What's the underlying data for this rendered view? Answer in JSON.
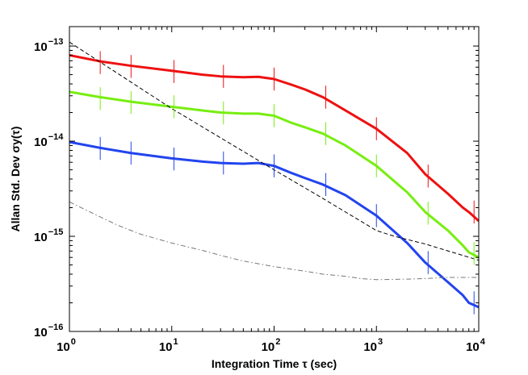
{
  "chart_data": {
    "type": "line",
    "xscale": "log",
    "yscale": "log",
    "xlim": [
      1,
      10000
    ],
    "ylim": [
      1e-16,
      1.6e-13
    ],
    "xlabel": "Integration Time τ (sec)",
    "ylabel": "Allan Std. Dev σy(τ)",
    "x_tick_labels": [
      {
        "value": 1,
        "base": "10",
        "exp": "0"
      },
      {
        "value": 10,
        "base": "10",
        "exp": "1"
      },
      {
        "value": 100,
        "base": "10",
        "exp": "2"
      },
      {
        "value": 1000,
        "base": "10",
        "exp": "3"
      },
      {
        "value": 10000,
        "base": "10",
        "exp": "4"
      }
    ],
    "y_tick_labels": [
      {
        "value": 1e-16,
        "base": "10",
        "exp": "−16"
      },
      {
        "value": 1e-15,
        "base": "10",
        "exp": "−15"
      },
      {
        "value": 1e-14,
        "base": "10",
        "exp": "−14"
      },
      {
        "value": 1e-13,
        "base": "10",
        "exp": "−13"
      }
    ],
    "series": [
      {
        "name": "red",
        "color": "#ee1111",
        "style": "solid",
        "x": [
          1,
          2,
          4,
          10,
          20,
          30,
          50,
          70,
          100,
          150,
          200,
          300,
          500,
          1000,
          2000,
          3000,
          5000,
          7000,
          8000,
          10000
        ],
        "y": [
          8e-14,
          6.9e-14,
          6.2e-14,
          5.5e-14,
          5e-14,
          4.8e-14,
          4.7e-14,
          4.75e-14,
          4.5e-14,
          3.9e-14,
          3.5e-14,
          2.9e-14,
          2.1e-14,
          1.35e-14,
          7.5e-15,
          4.5e-15,
          2.8e-15,
          2e-15,
          1.8e-15,
          1.45e-15
        ]
      },
      {
        "name": "green",
        "color": "#77ee11",
        "style": "solid",
        "x": [
          1,
          2,
          4,
          10,
          20,
          30,
          50,
          70,
          100,
          150,
          200,
          300,
          500,
          1000,
          2000,
          3000,
          5000,
          7000,
          8000,
          10000
        ],
        "y": [
          3.3e-14,
          2.9e-14,
          2.6e-14,
          2.3e-14,
          2.1e-14,
          2e-14,
          1.95e-14,
          1.95e-14,
          1.85e-14,
          1.55e-14,
          1.4e-14,
          1.2e-14,
          9e-15,
          5.5e-15,
          2.9e-15,
          1.8e-15,
          1.15e-15,
          8e-16,
          6.8e-16,
          6e-16
        ]
      },
      {
        "name": "blue",
        "color": "#2244ee",
        "style": "solid",
        "x": [
          1,
          2,
          4,
          10,
          20,
          30,
          50,
          70,
          100,
          150,
          200,
          300,
          500,
          1000,
          2000,
          3000,
          5000,
          7000,
          8000,
          10000
        ],
        "y": [
          9.8e-15,
          8.5e-15,
          7.5e-15,
          6.6e-15,
          6.1e-15,
          5.9e-15,
          5.8e-15,
          5.9e-15,
          5.5e-15,
          4.6e-15,
          4.1e-15,
          3.5e-15,
          2.7e-15,
          1.65e-15,
          8.5e-16,
          5.3e-16,
          3.3e-16,
          2.4e-16,
          2e-16,
          1.8e-16
        ]
      },
      {
        "name": "black-dashed",
        "color": "#000000",
        "style": "dashed",
        "x": [
          1,
          10,
          100,
          300,
          1000,
          1500,
          3000,
          10000
        ],
        "y": [
          1.1e-13,
          2.2e-14,
          5e-15,
          2.5e-15,
          1.15e-15,
          1e-15,
          8.3e-16,
          5.6e-16
        ]
      },
      {
        "name": "gray-dashdot",
        "color": "#777777",
        "style": "dashdot",
        "x": [
          1,
          2,
          3,
          5,
          10,
          20,
          30,
          50,
          100,
          200,
          300,
          500,
          700,
          1000,
          2000,
          3000,
          5000,
          10000
        ],
        "y": [
          2.3e-15,
          1.6e-15,
          1.3e-15,
          1.05e-15,
          8.5e-16,
          7.1e-16,
          6.3e-16,
          5.5e-16,
          4.8e-16,
          4.3e-16,
          4e-16,
          3.8e-16,
          3.6e-16,
          3.5e-16,
          3.55e-16,
          3.6e-16,
          3.7e-16,
          3.7e-16
        ]
      }
    ],
    "error_bars": [
      {
        "series": "red",
        "x": [
          2,
          4,
          10.5,
          32,
          100,
          320,
          1000,
          3200,
          9000
        ],
        "y": [
          6.7e-14,
          6.1e-14,
          5.4e-14,
          4.8e-14,
          4.5e-14,
          2.9e-14,
          1.35e-14,
          4.3e-15,
          1.8e-15
        ],
        "ratio": 1.32
      },
      {
        "series": "green",
        "x": [
          2,
          4,
          10.5,
          32,
          100,
          320,
          1000,
          3200,
          9000
        ],
        "y": [
          2.8e-14,
          2.55e-14,
          2.3e-14,
          1.98e-14,
          1.85e-14,
          1.2e-14,
          5.5e-15,
          1.75e-15,
          6.6e-16
        ],
        "ratio": 1.32
      },
      {
        "series": "blue",
        "x": [
          2,
          4,
          10.5,
          32,
          100,
          320,
          1000,
          3200,
          9000
        ],
        "y": [
          8.4e-15,
          7.5e-15,
          6.5e-15,
          5.9e-15,
          5.5e-15,
          3.5e-15,
          1.65e-15,
          5.3e-16,
          2e-16
        ],
        "ratio": 1.32
      }
    ]
  }
}
